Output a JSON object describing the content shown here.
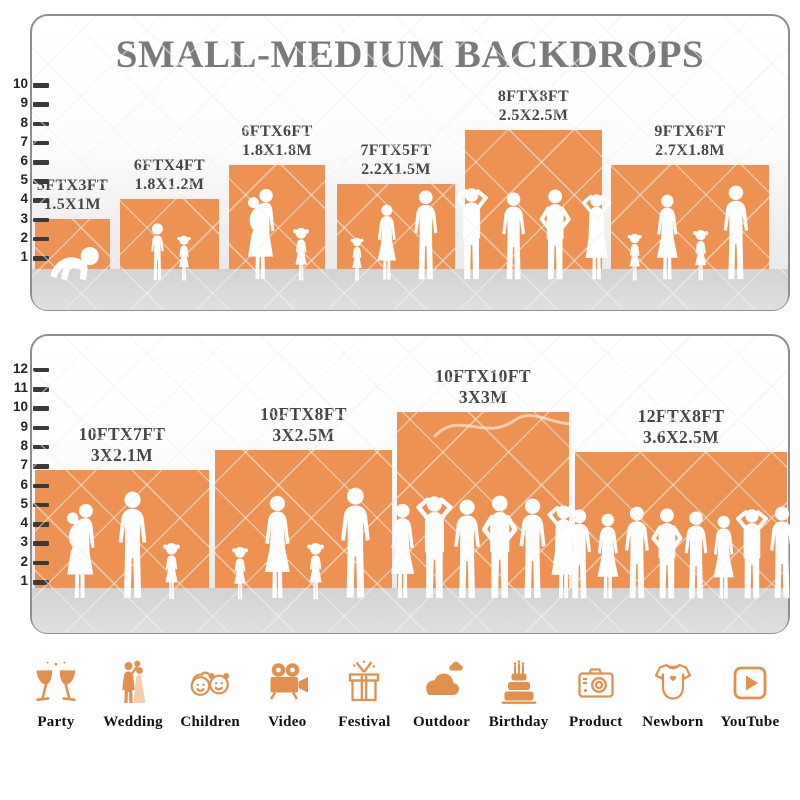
{
  "title": "SMALL-MEDIUM BACKDROPS",
  "colors": {
    "block_orange": "#ED9253",
    "icon_orange": "#E2904E",
    "title_gray": "#7A7A7A",
    "label_gray": "#474747",
    "floor_gray": "#D8D8D8",
    "border_gray": "#8E8E8E",
    "tick_dark": "#3A3A3A",
    "silhouette_white": "#FFFFFF"
  },
  "top_chart": {
    "ruler_labels": [
      "1",
      "2",
      "3",
      "4",
      "5",
      "6",
      "7",
      "8",
      "9",
      "10"
    ],
    "blocks": [
      {
        "size_ft": "5FTX3FT",
        "size_m": "1.5X1M",
        "ft_w": 5,
        "ft_h": 3,
        "figures": [
          [
            "baby",
            38
          ]
        ]
      },
      {
        "size_ft": "6FTX4FT",
        "size_m": "1.8X1.2M",
        "ft_w": 6,
        "ft_h": 4,
        "figures": [
          [
            "boy",
            60
          ],
          [
            "girl",
            48
          ]
        ]
      },
      {
        "size_ft": "6FTX6FT",
        "size_m": "1.8X1.8M",
        "ft_w": 6,
        "ft_h": 6,
        "figures": [
          [
            "womanbaby",
            94
          ],
          [
            "girl",
            56
          ]
        ]
      },
      {
        "size_ft": "7FTX5FT",
        "size_m": "2.2X1.5M",
        "ft_w": 7,
        "ft_h": 5,
        "figures": [
          [
            "girl",
            46
          ],
          [
            "woman",
            78
          ],
          [
            "man",
            92
          ]
        ]
      },
      {
        "size_ft": "8FTX8FT",
        "size_m": "2.5X2.5M",
        "ft_w": 8,
        "ft_h": 8,
        "figures": [
          [
            "manup",
            95
          ],
          [
            "man",
            90
          ],
          [
            "manakimbo",
            93
          ],
          [
            "womanup",
            89
          ]
        ]
      },
      {
        "size_ft": "9FTX6FT",
        "size_m": "2.7X1.8M",
        "ft_w": 9,
        "ft_h": 6,
        "figures": [
          [
            "girl",
            50
          ],
          [
            "woman",
            88
          ],
          [
            "girl",
            54
          ],
          [
            "man",
            97
          ]
        ]
      }
    ]
  },
  "bottom_chart": {
    "ruler_labels": [
      "1",
      "2",
      "3",
      "4",
      "5",
      "6",
      "7",
      "8",
      "9",
      "10",
      "11",
      "12"
    ],
    "blocks": [
      {
        "size_ft": "10FTX7FT",
        "size_m": "3X2.1M",
        "ft_w": 10,
        "ft_h": 7,
        "figures": [
          [
            "womanbaby",
            98
          ],
          [
            "man",
            110
          ],
          [
            "girl",
            60
          ]
        ]
      },
      {
        "size_ft": "10FTX8FT",
        "size_m": "3X2.5M",
        "ft_w": 10,
        "ft_h": 8,
        "figures": [
          [
            "girl",
            56
          ],
          [
            "woman",
            106
          ],
          [
            "girl",
            60
          ],
          [
            "man",
            114
          ]
        ]
      },
      {
        "size_ft": "10FTX10FT",
        "size_m": "3X3M",
        "ft_w": 10,
        "ft_h": 10,
        "figures": [
          [
            "woman",
            98
          ],
          [
            "manup",
            106
          ],
          [
            "man",
            102
          ],
          [
            "manakimbo",
            106
          ],
          [
            "man",
            103
          ],
          [
            "womanup",
            97
          ]
        ]
      },
      {
        "size_ft": "12FTX8FT",
        "size_m": "3.6X2.5M",
        "ft_w": 12,
        "ft_h": 8,
        "figures": [
          [
            "man",
            92
          ],
          [
            "woman",
            88
          ],
          [
            "man",
            95
          ],
          [
            "manakimbo",
            93
          ],
          [
            "man",
            90
          ],
          [
            "woman",
            86
          ],
          [
            "manup",
            93
          ],
          [
            "man",
            95
          ]
        ]
      }
    ]
  },
  "categories": [
    {
      "label": "Party",
      "icon": "party-icon"
    },
    {
      "label": "Wedding",
      "icon": "wedding-icon"
    },
    {
      "label": "Children",
      "icon": "children-icon"
    },
    {
      "label": "Video",
      "icon": "video-icon"
    },
    {
      "label": "Festival",
      "icon": "festival-icon"
    },
    {
      "label": "Outdoor",
      "icon": "outdoor-icon"
    },
    {
      "label": "Birthday",
      "icon": "birthday-icon"
    },
    {
      "label": "Product",
      "icon": "product-icon"
    },
    {
      "label": "Newborn",
      "icon": "newborn-icon"
    },
    {
      "label": "YouTube",
      "icon": "youtube-icon"
    }
  ]
}
